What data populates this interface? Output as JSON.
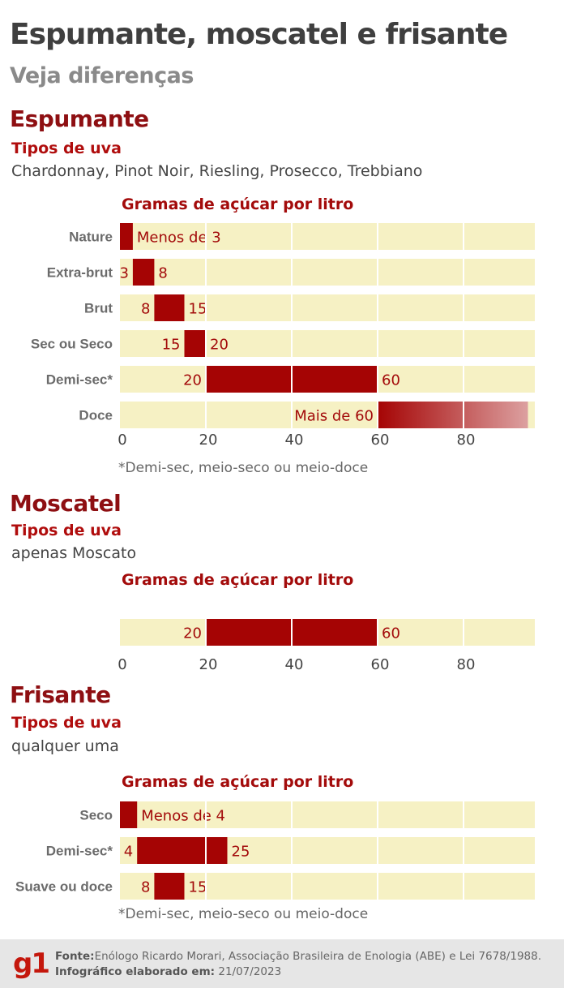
{
  "header": {
    "title": "Espumante, moscatel e frisante",
    "subtitle": "Veja diferenças"
  },
  "colors": {
    "bar": "#a50404",
    "track": "#f6f1c4",
    "value_text": "#a30b0b",
    "category_text": "#6b6b6b"
  },
  "chart_data": [
    {
      "type": "bar",
      "orientation": "horizontal-range",
      "section": "Espumante",
      "grape_label": "Tipos de uva",
      "grapes": "Chardonnay, Pinot Noir, Riesling, Prosecco, Trebbiano",
      "title": "Gramas de açúcar por litro",
      "categories": [
        "Nature",
        "Extra-brut",
        "Brut",
        "Sec ou Seco",
        "Demi-sec*",
        "Doce"
      ],
      "ranges": [
        [
          0,
          3
        ],
        [
          3,
          8
        ],
        [
          8,
          15
        ],
        [
          15,
          20
        ],
        [
          20,
          60
        ],
        [
          60,
          95
        ]
      ],
      "data_labels": [
        [
          "",
          "Menos de 3"
        ],
        [
          "3",
          "8"
        ],
        [
          "8",
          "15"
        ],
        [
          "15",
          "20"
        ],
        [
          "20",
          "60"
        ],
        [
          "Mais de 60",
          ""
        ]
      ],
      "open_ended": [
        false,
        false,
        false,
        false,
        false,
        true
      ],
      "xticks": [
        "0",
        "20",
        "40",
        "60",
        "80"
      ],
      "xlim": [
        0,
        95
      ],
      "grid": true,
      "footnote": "*Demi-sec, meio-seco ou meio-doce"
    },
    {
      "type": "bar",
      "orientation": "horizontal-range",
      "section": "Moscatel",
      "grape_label": "Tipos de uva",
      "grapes": "apenas Moscato",
      "title": "Gramas de açúcar por litro",
      "categories": [
        ""
      ],
      "ranges": [
        [
          20,
          60
        ]
      ],
      "data_labels": [
        [
          "20",
          "60"
        ]
      ],
      "open_ended": [
        false
      ],
      "xticks": [
        "0",
        "20",
        "40",
        "60",
        "80"
      ],
      "xlim": [
        0,
        95
      ],
      "grid": true
    },
    {
      "type": "bar",
      "orientation": "horizontal-range",
      "section": "Frisante",
      "grape_label": "Tipos de uva",
      "grapes": "qualquer uma",
      "title": "Gramas de açúcar por litro",
      "categories": [
        "Seco",
        "Demi-sec*",
        "Suave ou doce"
      ],
      "ranges": [
        [
          0,
          4
        ],
        [
          4,
          25
        ],
        [
          8,
          15
        ]
      ],
      "data_labels": [
        [
          "",
          "Menos de 4"
        ],
        [
          "4",
          "25"
        ],
        [
          "8",
          "15"
        ]
      ],
      "open_ended": [
        false,
        false,
        false
      ],
      "xticks": [],
      "xlim": [
        0,
        95
      ],
      "grid": true,
      "footnote": "*Demi-sec, meio-seco ou meio-doce"
    }
  ],
  "footer": {
    "logo": "g1",
    "source_label": "Fonte:",
    "source_text": "Enólogo Ricardo Morari, Associação Brasileira de Enologia (ABE) e Lei 7678/1988.",
    "made_label": "Infográfico elaborado em:",
    "made_date": "21/07/2023"
  }
}
